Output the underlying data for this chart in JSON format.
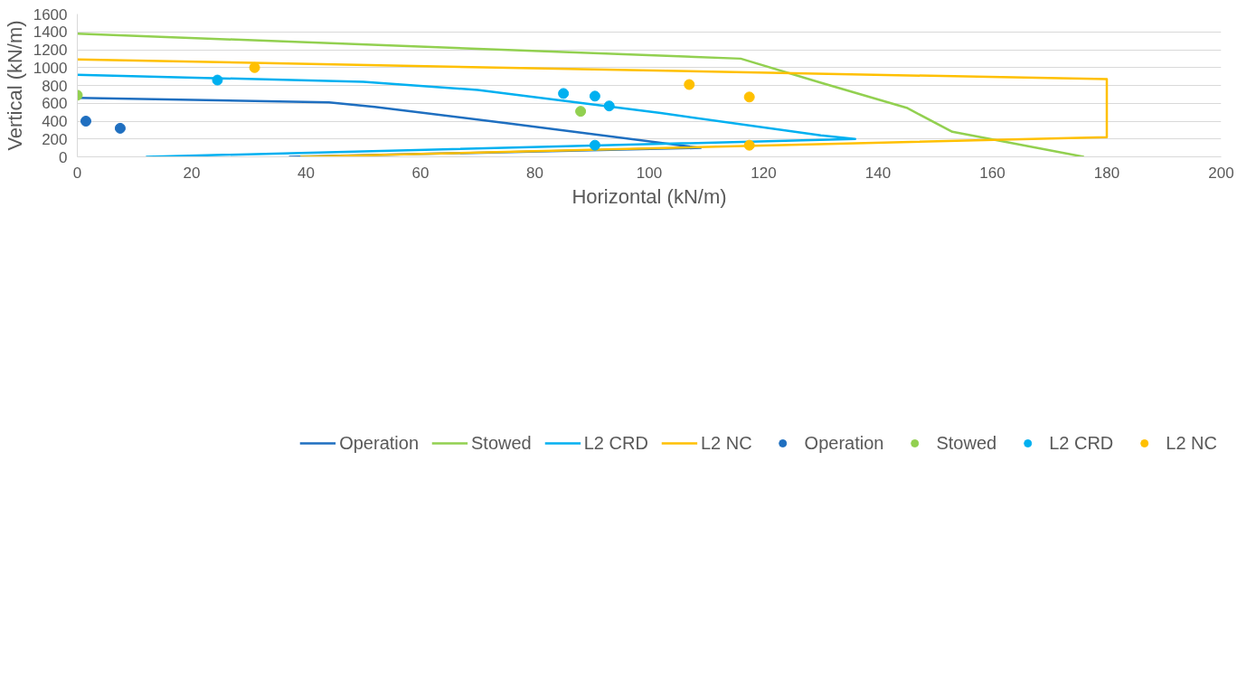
{
  "chart_data": {
    "type": "line",
    "xlabel": "Horizontal (kN/m)",
    "ylabel": "Vertical (kN/m)",
    "xlim": [
      0,
      200
    ],
    "ylim": [
      0,
      1600
    ],
    "xticks": [
      0,
      20,
      40,
      60,
      80,
      100,
      120,
      140,
      160,
      180,
      200
    ],
    "yticks": [
      0,
      200,
      400,
      600,
      800,
      1000,
      1200,
      1400,
      1600
    ],
    "grid": "y",
    "legend": "bottom",
    "marker": "none",
    "line_style": "solid",
    "series": [
      {
        "name": "Operation",
        "color": "#1f6fc0",
        "x": [
          0,
          44,
          52,
          76,
          109,
          37
        ],
        "values": [
          660,
          610,
          560,
          370,
          100,
          0
        ]
      },
      {
        "name": "Stowed",
        "color": "#92d050",
        "x": [
          0,
          116,
          130,
          145,
          153,
          176
        ],
        "values": [
          1380,
          1100,
          830,
          550,
          280,
          0
        ]
      },
      {
        "name": "L2 CRD",
        "color": "#00b0f0",
        "x": [
          0,
          50,
          70,
          102,
          130,
          136,
          12
        ],
        "values": [
          920,
          840,
          750,
          490,
          240,
          200,
          0
        ]
      },
      {
        "name": "L2 NC",
        "color": "#ffc000",
        "x": [
          0,
          180,
          180,
          39
        ],
        "values": [
          1090,
          870,
          220,
          0
        ]
      },
      {
        "name": "Operation",
        "type": "scatter",
        "marker": "circle",
        "color": "#1f6fc0",
        "x": [
          1.5,
          7.5
        ],
        "values": [
          400,
          320
        ]
      },
      {
        "name": "Stowed",
        "type": "scatter",
        "marker": "circle",
        "color": "#92d050",
        "x": [
          0,
          88
        ],
        "values": [
          690,
          510
        ]
      },
      {
        "name": "L2 CRD",
        "type": "scatter",
        "marker": "circle",
        "color": "#00b0f0",
        "x": [
          24.5,
          85,
          90.5,
          93,
          90.5
        ],
        "values": [
          860,
          710,
          680,
          570,
          130
        ]
      },
      {
        "name": "L2 NC",
        "type": "scatter",
        "marker": "circle",
        "color": "#ffc000",
        "x": [
          31,
          107,
          117.5,
          117.5
        ],
        "values": [
          1000,
          810,
          670,
          130
        ]
      }
    ]
  }
}
